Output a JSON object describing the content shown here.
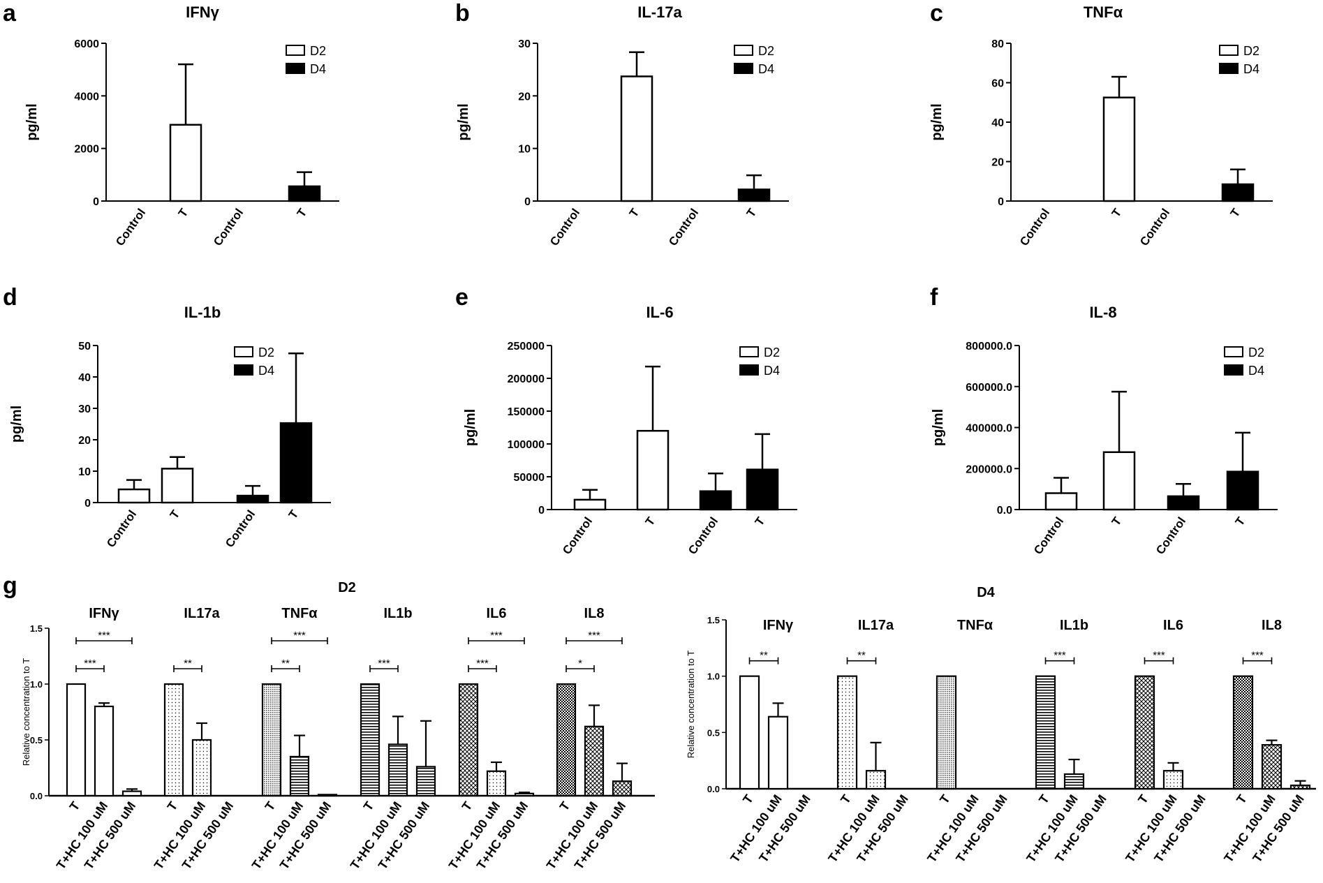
{
  "chart_data": [
    {
      "type": "bar",
      "panel": "a",
      "title": "IFNγ",
      "ylabel": "pg/ml",
      "ylim": [
        0,
        6000
      ],
      "yticks": [
        "0",
        "2000",
        "4000",
        "6000"
      ],
      "categories": [
        "Control",
        "T",
        "Control",
        "T"
      ],
      "groups": [
        "D2",
        "D2",
        "D4",
        "D4"
      ],
      "values": [
        0,
        2900,
        0,
        560
      ],
      "errors": [
        0,
        2300,
        0,
        540
      ],
      "legend": [
        "D2",
        "D4"
      ]
    },
    {
      "type": "bar",
      "panel": "b",
      "title": "IL-17a",
      "ylabel": "pg/ml",
      "ylim": [
        0,
        30
      ],
      "yticks": [
        "0",
        "10",
        "20",
        "30"
      ],
      "categories": [
        "Control",
        "T",
        "Control",
        "T"
      ],
      "groups": [
        "D2",
        "D2",
        "D4",
        "D4"
      ],
      "values": [
        0,
        23.7,
        0,
        2.2
      ],
      "errors": [
        0,
        4.6,
        0,
        2.7
      ],
      "legend": [
        "D2",
        "D4"
      ]
    },
    {
      "type": "bar",
      "panel": "c",
      "title": "TNFα",
      "ylabel": "pg/ml",
      "ylim": [
        0,
        80
      ],
      "yticks": [
        "0",
        "20",
        "40",
        "60",
        "80"
      ],
      "categories": [
        "Control",
        "T",
        "Control",
        "T"
      ],
      "groups": [
        "D2",
        "D2",
        "D4",
        "D4"
      ],
      "values": [
        0,
        52.5,
        0,
        8.5
      ],
      "errors": [
        0,
        10.5,
        0,
        7.5
      ],
      "legend": [
        "D2",
        "D4"
      ]
    },
    {
      "type": "bar",
      "panel": "d",
      "title": "IL-1b",
      "ylabel": "pg/ml",
      "ylim": [
        0,
        50
      ],
      "yticks": [
        "0",
        "10",
        "20",
        "30",
        "40",
        "50"
      ],
      "categories": [
        "Control",
        "T",
        "Control",
        "T"
      ],
      "groups": [
        "D2",
        "D2",
        "D4",
        "D4"
      ],
      "values": [
        4.2,
        10.8,
        2.2,
        25.3
      ],
      "errors": [
        3,
        3.7,
        3.1,
        22.2
      ],
      "legend": [
        "D2",
        "D4"
      ]
    },
    {
      "type": "bar",
      "panel": "e",
      "title": "IL-6",
      "ylabel": "pg/ml",
      "ylim": [
        0,
        250000
      ],
      "yticks": [
        "0",
        "50000",
        "100000",
        "150000",
        "200000",
        "250000"
      ],
      "categories": [
        "Control",
        "T",
        "Control",
        "T"
      ],
      "groups": [
        "D2",
        "D2",
        "D4",
        "D4"
      ],
      "values": [
        15000,
        120000,
        28000,
        61000
      ],
      "errors": [
        15000,
        98000,
        27000,
        54000
      ],
      "legend": [
        "D2",
        "D4"
      ]
    },
    {
      "type": "bar",
      "panel": "f",
      "title": "IL-8",
      "ylabel": "pg/ml",
      "ylim": [
        0,
        800000
      ],
      "yticks": [
        "0.0",
        "200000.0",
        "400000.0",
        "600000.0",
        "800000.0"
      ],
      "categories": [
        "Control",
        "T",
        "Control",
        "T"
      ],
      "groups": [
        "D2",
        "D2",
        "D4",
        "D4"
      ],
      "values": [
        80000,
        280000,
        65000,
        185000
      ],
      "errors": [
        75000,
        295000,
        60000,
        190000
      ],
      "legend": [
        "D2",
        "D4"
      ]
    },
    {
      "type": "bar",
      "panel": "g",
      "title": "D2",
      "ylabel": "Relative concentration to T",
      "ylim": [
        0,
        1.5
      ],
      "yticks": [
        "0.0",
        "0.5",
        "1.0",
        "1.5"
      ],
      "categories": [
        "T",
        "T+HC 100 uM",
        "T+HC 500 uM"
      ],
      "series": [
        {
          "name": "IFNγ",
          "values": [
            1.0,
            0.8,
            0.04
          ],
          "errors": [
            0,
            0.03,
            0.02
          ],
          "sig": [
            {
              "pair": [
                0,
                1
              ],
              "label": "***"
            },
            {
              "pair": [
                0,
                2
              ],
              "label": "***"
            }
          ]
        },
        {
          "name": "IL17a",
          "values": [
            1.0,
            0.5,
            0
          ],
          "errors": [
            0,
            0.15,
            0
          ],
          "sig": [
            {
              "pair": [
                0,
                1
              ],
              "label": "**"
            }
          ]
        },
        {
          "name": "TNFα",
          "values": [
            1.0,
            0.35,
            0.01
          ],
          "errors": [
            0,
            0.19,
            0
          ],
          "sig": [
            {
              "pair": [
                0,
                1
              ],
              "label": "**"
            },
            {
              "pair": [
                0,
                2
              ],
              "label": "***"
            }
          ]
        },
        {
          "name": "IL1b",
          "values": [
            1.0,
            0.46,
            0.26
          ],
          "errors": [
            0,
            0.25,
            0.41
          ],
          "sig": [
            {
              "pair": [
                0,
                1
              ],
              "label": "***"
            }
          ]
        },
        {
          "name": "IL6",
          "values": [
            1.0,
            0.22,
            0.02
          ],
          "errors": [
            0,
            0.08,
            0.01
          ],
          "sig": [
            {
              "pair": [
                0,
                1
              ],
              "label": "***"
            },
            {
              "pair": [
                0,
                2
              ],
              "label": "***"
            }
          ]
        },
        {
          "name": "IL8",
          "values": [
            1.0,
            0.62,
            0.13
          ],
          "errors": [
            0,
            0.19,
            0.16
          ],
          "sig": [
            {
              "pair": [
                0,
                1
              ],
              "label": "*"
            },
            {
              "pair": [
                0,
                2
              ],
              "label": "***"
            }
          ]
        }
      ]
    },
    {
      "type": "bar",
      "panel": "g",
      "title": "D4",
      "ylabel": "Relative concentration to T",
      "ylim": [
        0,
        1.5
      ],
      "yticks": [
        "0.0",
        "0.5",
        "1.0",
        "1.5"
      ],
      "categories": [
        "T",
        "T+HC 100 uM",
        "T+HC 500 uM"
      ],
      "series": [
        {
          "name": "IFNγ",
          "values": [
            1.0,
            0.64,
            0
          ],
          "errors": [
            0,
            0.12,
            0
          ],
          "sig": [
            {
              "pair": [
                0,
                1
              ],
              "label": "**"
            }
          ]
        },
        {
          "name": "IL17a",
          "values": [
            1.0,
            0.16,
            0
          ],
          "errors": [
            0,
            0.25,
            0
          ],
          "sig": [
            {
              "pair": [
                0,
                1
              ],
              "label": "**"
            }
          ]
        },
        {
          "name": "TNFα",
          "values": [
            1.0,
            0,
            0
          ],
          "errors": [
            0,
            0,
            0
          ],
          "sig": []
        },
        {
          "name": "IL1b",
          "values": [
            1.0,
            0.13,
            0
          ],
          "errors": [
            0,
            0.13,
            0
          ],
          "sig": [
            {
              "pair": [
                0,
                1
              ],
              "label": "***"
            }
          ]
        },
        {
          "name": "IL6",
          "values": [
            1.0,
            0.16,
            0
          ],
          "errors": [
            0,
            0.07,
            0
          ],
          "sig": [
            {
              "pair": [
                0,
                1
              ],
              "label": "***"
            }
          ]
        },
        {
          "name": "IL8",
          "values": [
            1.0,
            0.39,
            0.03
          ],
          "errors": [
            0,
            0.04,
            0.04
          ],
          "sig": [
            {
              "pair": [
                0,
                1
              ],
              "label": "***"
            }
          ]
        }
      ]
    }
  ],
  "panel_letters": [
    "a",
    "b",
    "c",
    "d",
    "e",
    "f",
    "g"
  ]
}
